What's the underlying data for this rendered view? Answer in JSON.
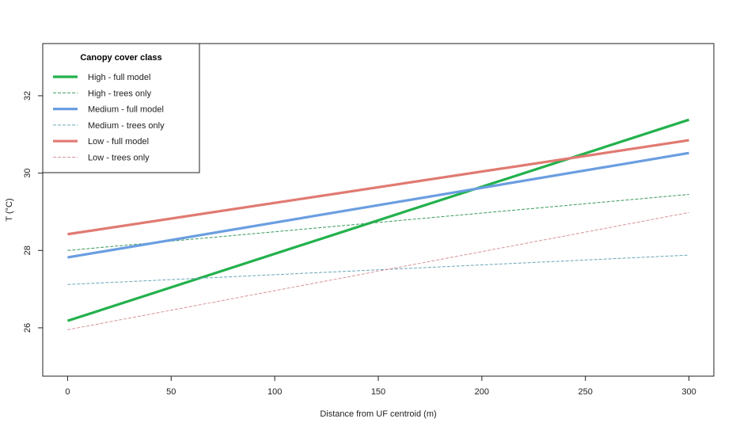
{
  "chart_data": {
    "type": "line",
    "title": "",
    "xlabel": "Distance from UF centroid (m)",
    "ylabel": "T (°C)",
    "xlim": [
      -12,
      312
    ],
    "ylim": [
      24.75,
      33.35
    ],
    "x_ticks": [
      0,
      50,
      100,
      150,
      200,
      250,
      300
    ],
    "y_ticks": [
      26,
      28,
      30,
      32
    ],
    "grid": false,
    "legend": {
      "title": "Canopy cover class",
      "placement": "top-left"
    },
    "series": [
      {
        "name": "High - full model",
        "color": "#22b14c",
        "style": "solid",
        "weight": "thick",
        "x": [
          0,
          300
        ],
        "y": [
          26.18,
          31.38
        ]
      },
      {
        "name": "High - trees only",
        "color": "#3a9a5c",
        "style": "dashed",
        "weight": "thin",
        "x": [
          0,
          300
        ],
        "y": [
          28.0,
          29.45
        ]
      },
      {
        "name": "Medium - full model",
        "color": "#6a9ee0",
        "style": "solid",
        "weight": "thick",
        "x": [
          0,
          300
        ],
        "y": [
          27.82,
          30.52
        ]
      },
      {
        "name": "Medium - trees only",
        "color": "#6aa6b8",
        "style": "dashed",
        "weight": "thin",
        "x": [
          0,
          300
        ],
        "y": [
          27.12,
          27.88
        ]
      },
      {
        "name": "Low - full model",
        "color": "#e07a72",
        "style": "solid",
        "weight": "thick",
        "x": [
          0,
          300
        ],
        "y": [
          28.42,
          30.85
        ]
      },
      {
        "name": "Low - trees only",
        "color": "#d8939a",
        "style": "dashed",
        "weight": "thin",
        "x": [
          0,
          300
        ],
        "y": [
          25.95,
          28.98
        ]
      }
    ]
  }
}
